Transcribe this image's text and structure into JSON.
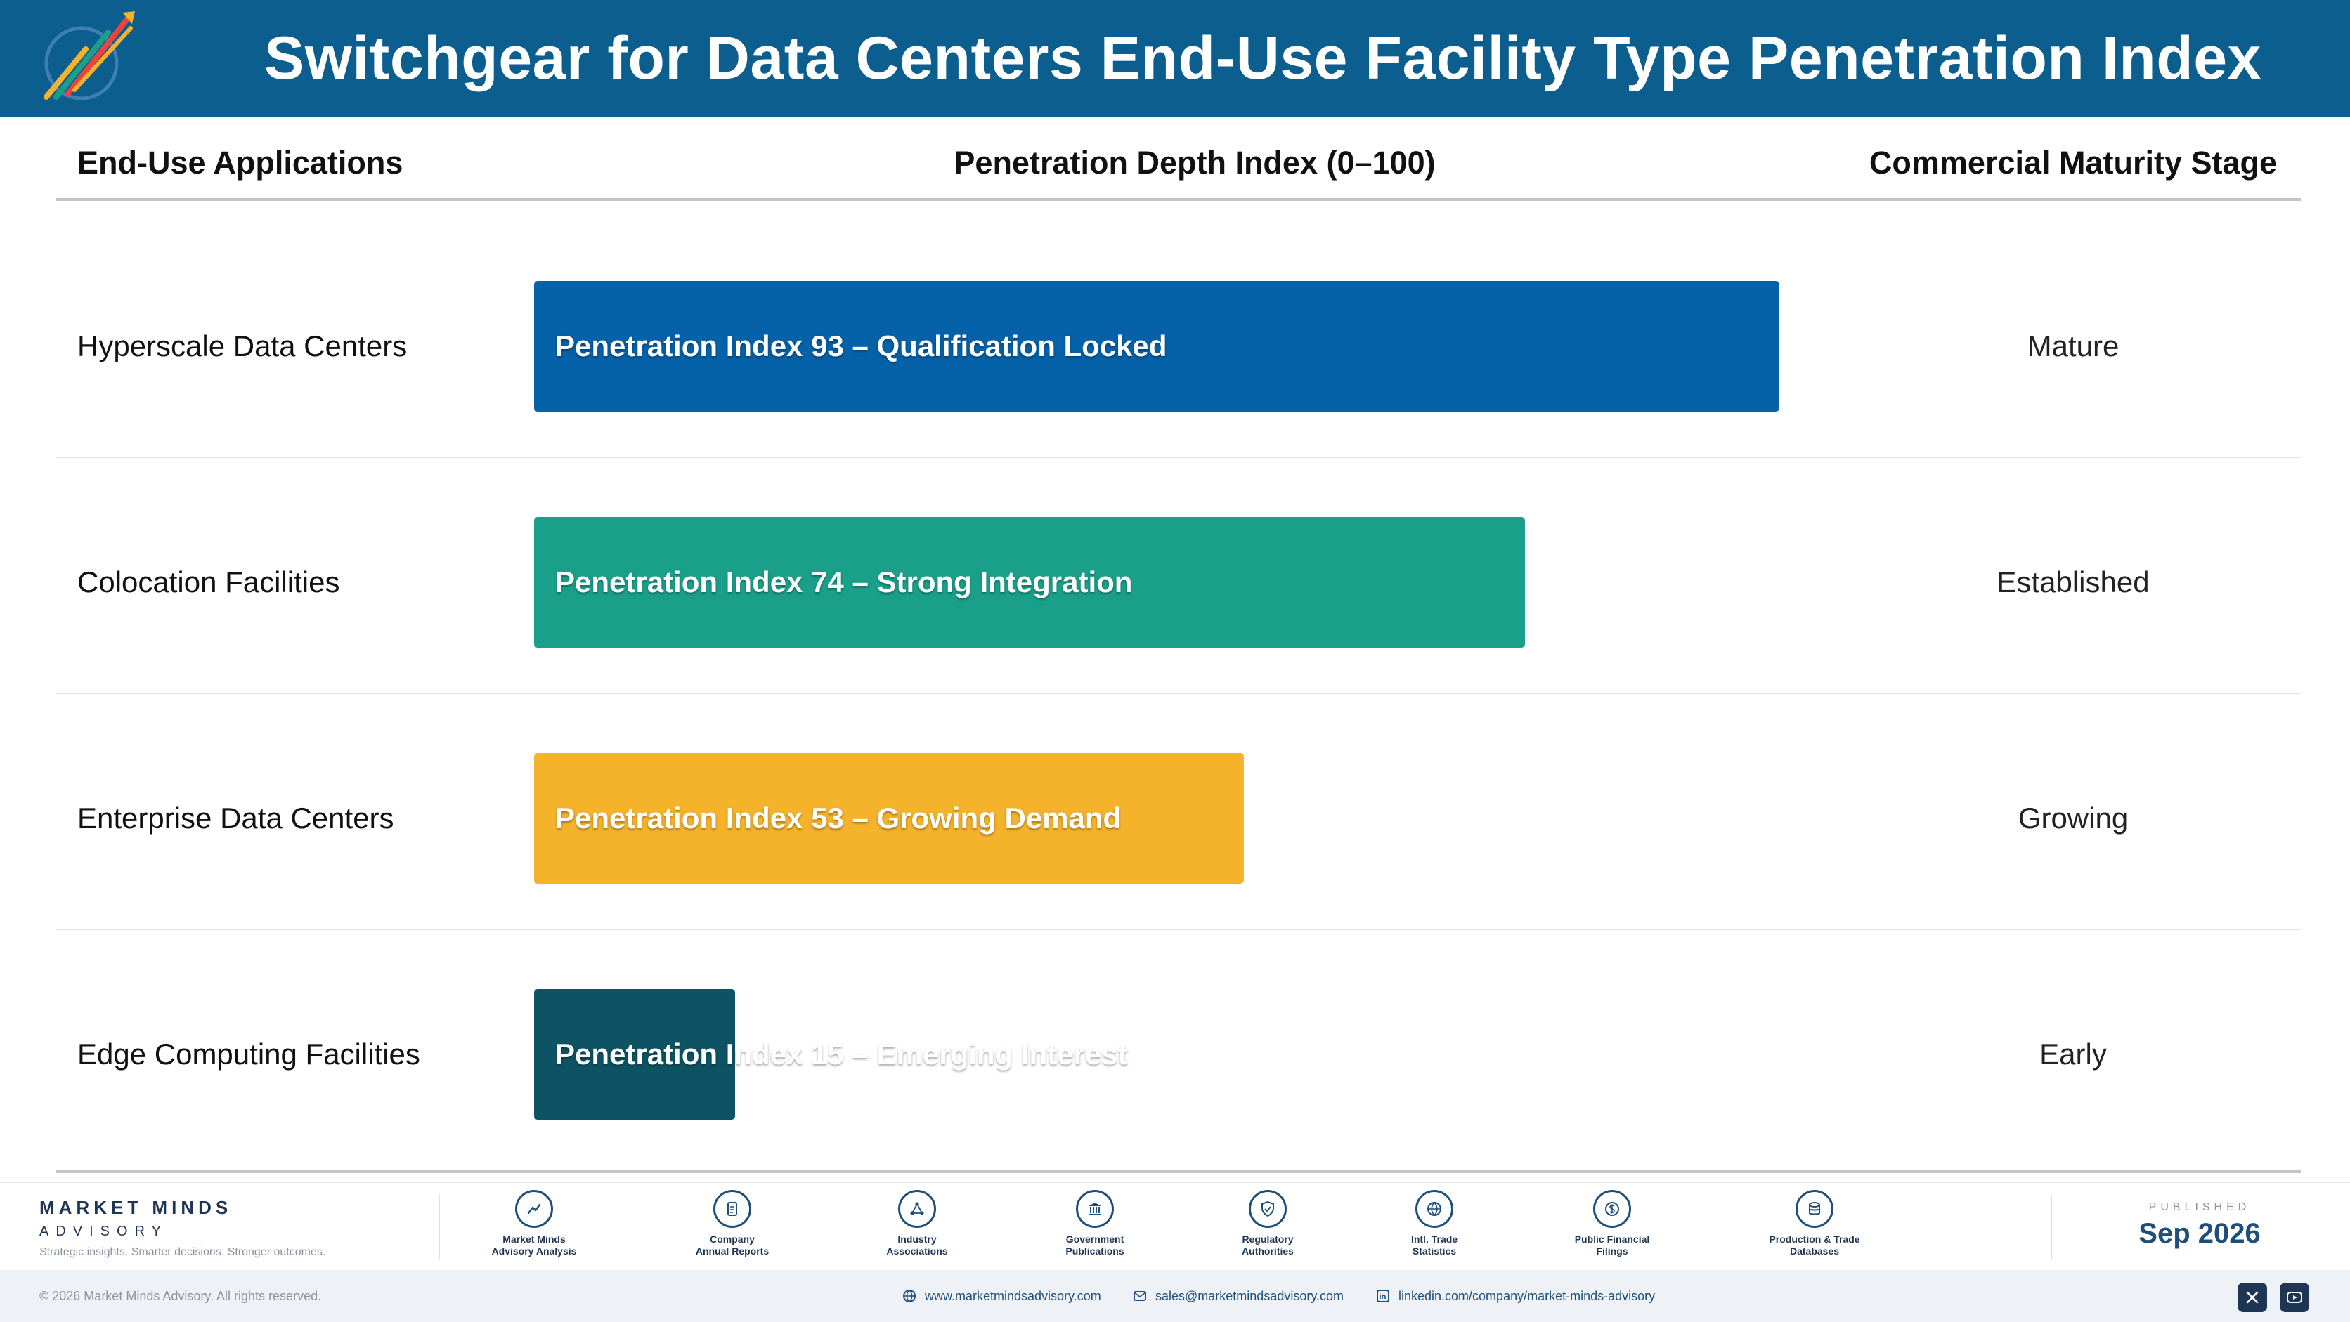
{
  "header": {
    "title": "Switchgear for Data Centers End-Use Facility Type Penetration Index",
    "logo_text": "Market Minds Advisory"
  },
  "columns": {
    "applications": "End-Use Applications",
    "index": "Penetration Depth Index (0–100)",
    "stage": "Commercial Maturity Stage"
  },
  "chart_data": {
    "type": "bar",
    "orientation": "horizontal",
    "title": "Switchgear for Data Centers End-Use Facility Type Penetration Index",
    "xlabel": "Penetration Depth Index (0–100)",
    "xlim": [
      0,
      100
    ],
    "categories": [
      "Hyperscale Data Centers",
      "Colocation Facilities",
      "Enterprise Data Centers",
      "Edge Computing Facilities"
    ],
    "values": [
      93,
      74,
      53,
      15
    ],
    "bar_labels": [
      "Penetration Index 93 – Qualification Locked",
      "Penetration Index 74 – Strong Integration",
      "Penetration Index 53 – Growing Demand",
      "Penetration Index 15 – Emerging Interest"
    ],
    "stages": [
      "Mature",
      "Established",
      "Growing",
      "Early"
    ],
    "colors": [
      "#0561a8",
      "#1aa08a",
      "#f5b22b",
      "#0e5363"
    ]
  },
  "footer": {
    "brand_name": "MARKET MINDS",
    "brand_sub": "ADVISORY",
    "tagline": "Strategic insights. Smarter decisions. Stronger outcomes.",
    "sources": [
      {
        "icon": "trend-chart-icon",
        "line1": "Market Minds",
        "line2": "Advisory Analysis"
      },
      {
        "icon": "document-icon",
        "line1": "Company",
        "line2": "Annual Reports"
      },
      {
        "icon": "network-icon",
        "line1": "Industry",
        "line2": "Associations"
      },
      {
        "icon": "government-building-icon",
        "line1": "Government",
        "line2": "Publications"
      },
      {
        "icon": "shield-check-icon",
        "line1": "Regulatory",
        "line2": "Authorities"
      },
      {
        "icon": "globe-icon",
        "line1": "Intl. Trade",
        "line2": "Statistics"
      },
      {
        "icon": "dollar-coin-icon",
        "line1": "Public Financial",
        "line2": "Filings"
      },
      {
        "icon": "database-icon",
        "line1": "Production & Trade",
        "line2": "Databases"
      }
    ],
    "published_label": "PUBLISHED",
    "published_date": "Sep 2026",
    "copyright": "© 2026 Market Minds Advisory. All rights reserved.",
    "website": "www.marketmindsadvisory.com",
    "email": "sales@marketmindsadvisory.com",
    "linkedin": "linkedin.com/company/market-minds-advisory"
  }
}
